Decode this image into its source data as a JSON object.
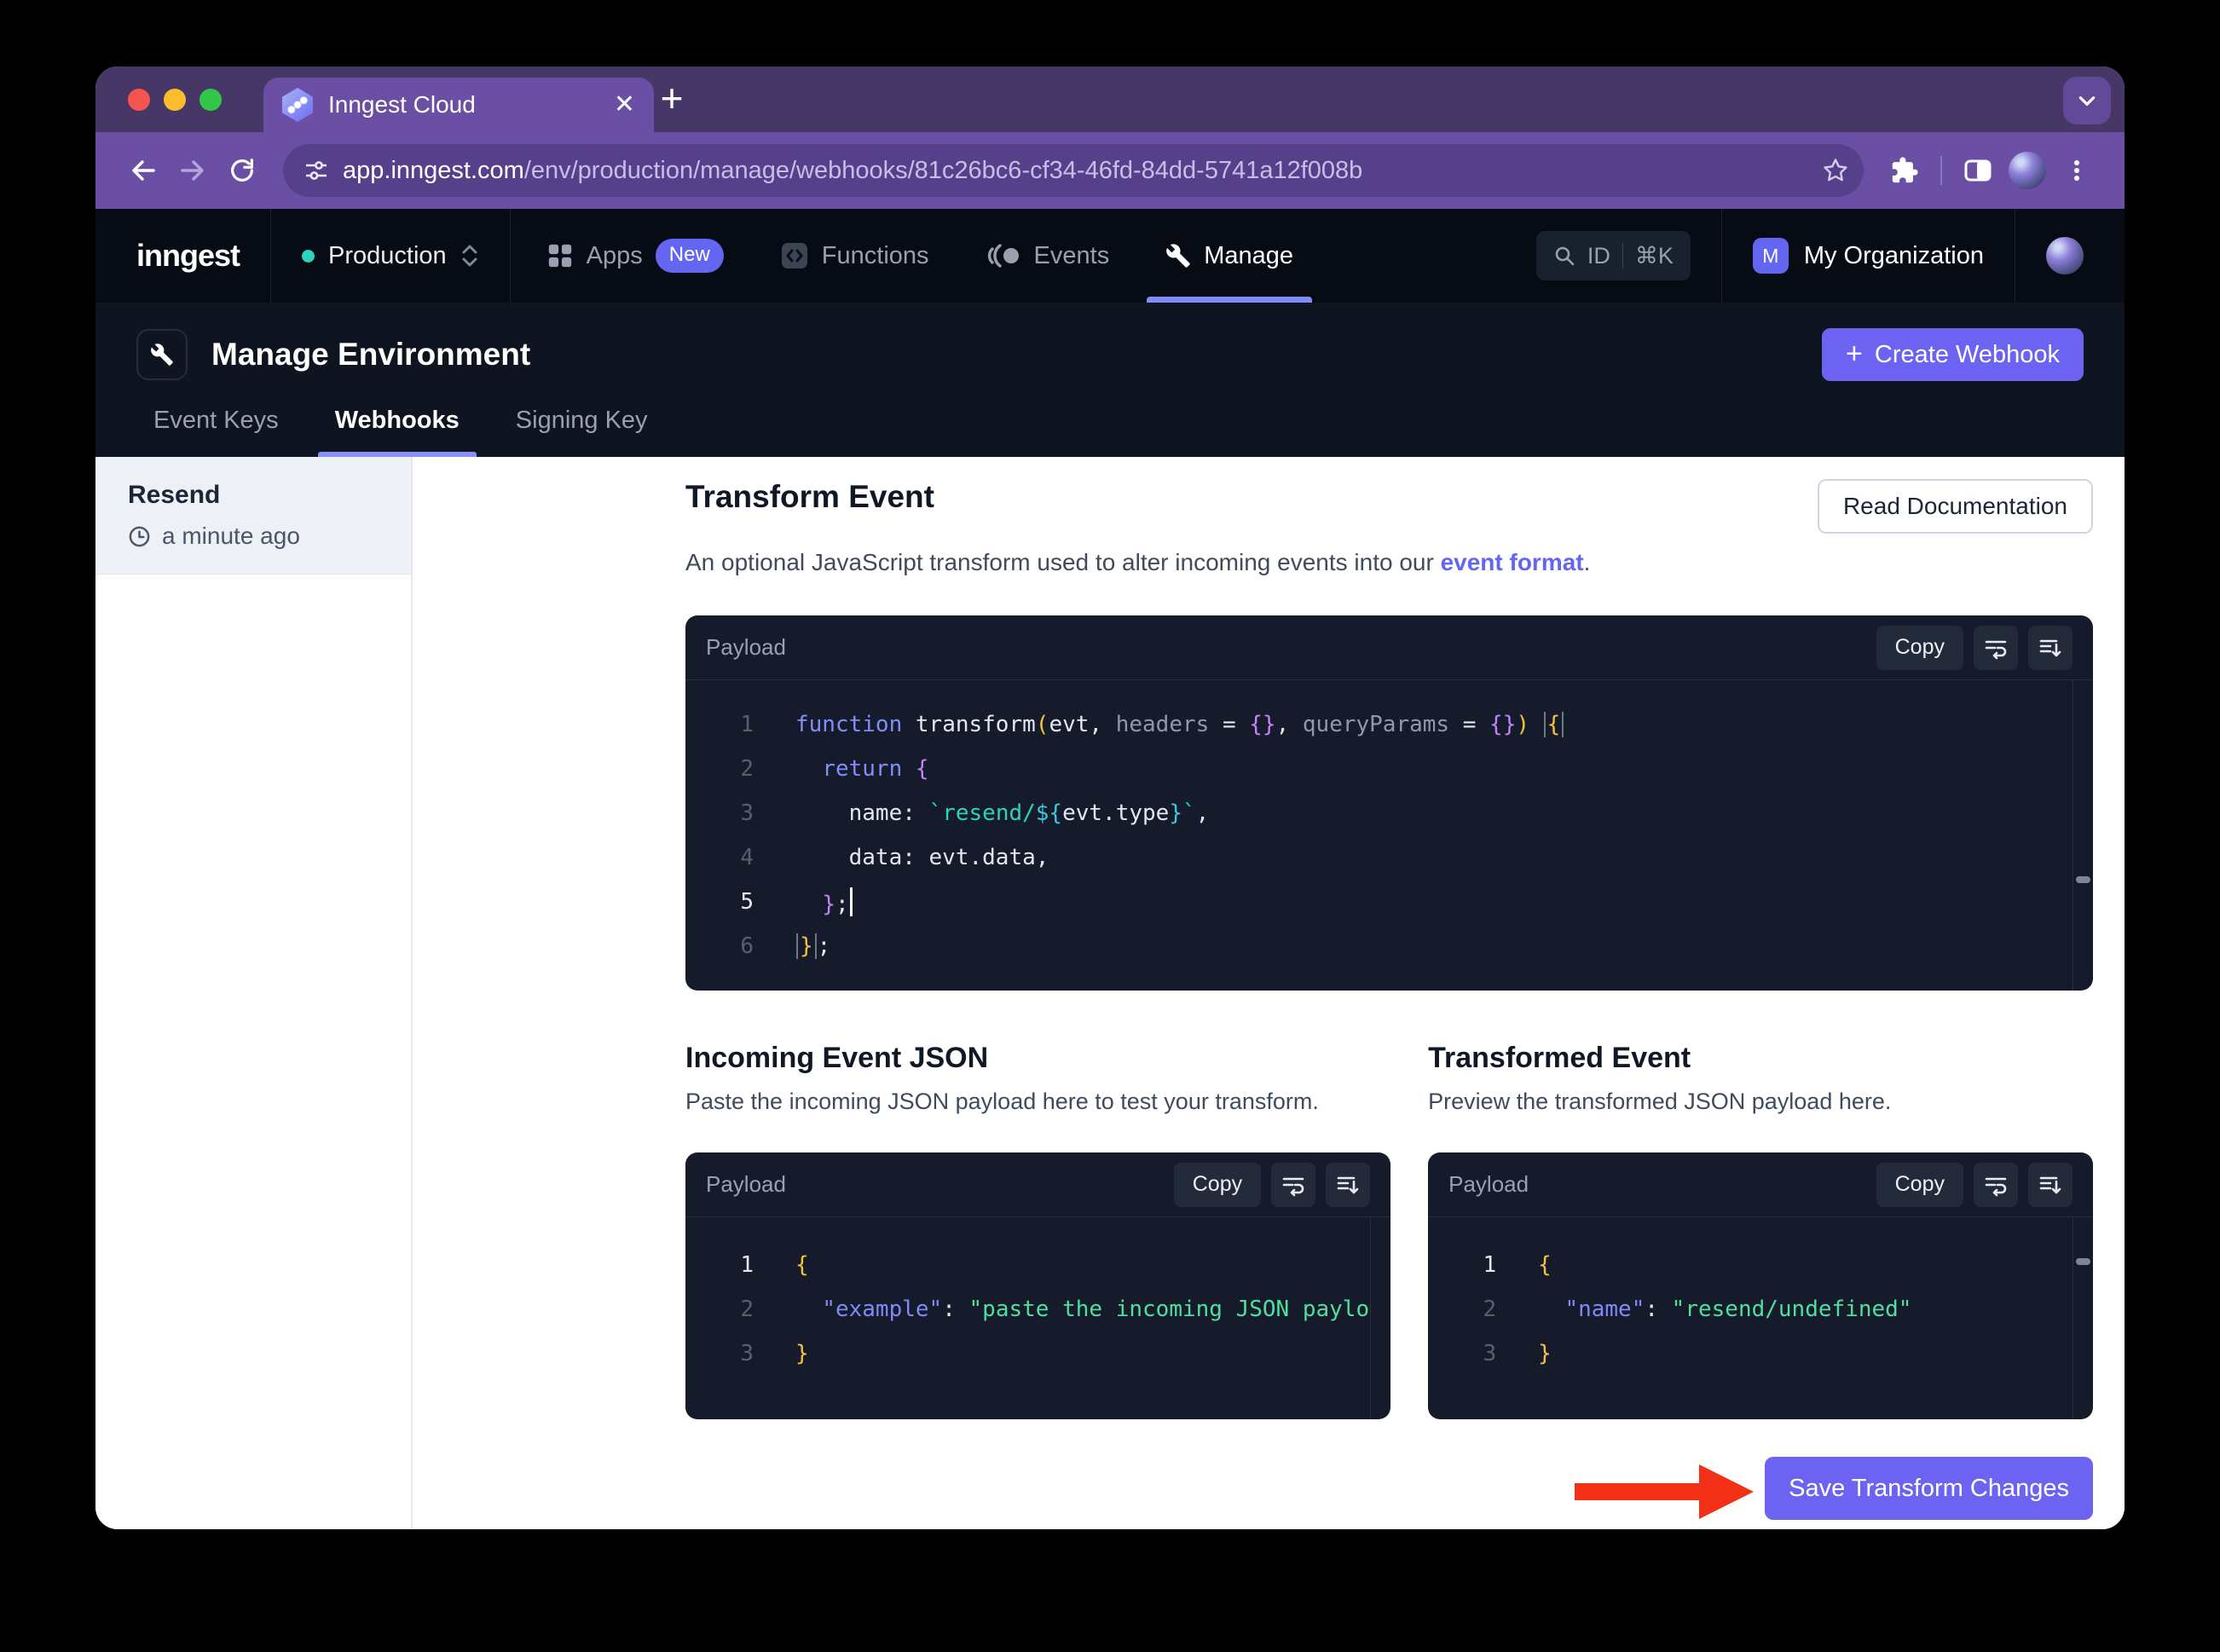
{
  "browser": {
    "tab_title": "Inngest Cloud",
    "url_host": "app.inngest.com",
    "url_path": "/env/production/manage/webhooks/81c26bc6-cf34-46fd-84dd-5741a12f008b"
  },
  "nav": {
    "logo": "inngest",
    "environment": "Production",
    "items": [
      {
        "label": "Apps",
        "badge": "New",
        "active": false
      },
      {
        "label": "Functions",
        "active": false
      },
      {
        "label": "Events",
        "active": false
      },
      {
        "label": "Manage",
        "active": true
      }
    ],
    "search": {
      "id_label": "ID",
      "shortcut": "⌘K"
    },
    "org": {
      "initial": "M",
      "name": "My Organization"
    }
  },
  "header": {
    "title": "Manage Environment",
    "create_button": "Create Webhook",
    "tabs": [
      {
        "label": "Event Keys",
        "active": false
      },
      {
        "label": "Webhooks",
        "active": true
      },
      {
        "label": "Signing Key",
        "active": false
      }
    ]
  },
  "sidebar": {
    "items": [
      {
        "name": "Resend",
        "time": "a minute ago"
      }
    ]
  },
  "transform": {
    "title": "Transform Event",
    "description_prefix": "An optional JavaScript transform used to alter incoming events into our ",
    "description_link": "event format",
    "description_suffix": ".",
    "read_docs_button": "Read Documentation"
  },
  "editor": {
    "panel_label": "Payload",
    "copy_label": "Copy",
    "active_line": 5,
    "lines": [
      [
        [
          "k",
          "function"
        ],
        [
          "w",
          " transform"
        ],
        [
          "y",
          "("
        ],
        [
          "w",
          "evt, "
        ],
        [
          "g",
          "headers"
        ],
        [
          "w",
          " = "
        ],
        [
          "p",
          "{}"
        ],
        [
          "w",
          ", "
        ],
        [
          "g",
          "queryParams"
        ],
        [
          "w",
          " = "
        ],
        [
          "p",
          "{}"
        ],
        [
          "y",
          ")"
        ],
        [
          "w",
          " "
        ],
        [
          "yb",
          "{"
        ]
      ],
      [
        [
          "w",
          "  "
        ],
        [
          "k",
          "return"
        ],
        [
          "w",
          " "
        ],
        [
          "p",
          "{"
        ]
      ],
      [
        [
          "w",
          "    name: "
        ],
        [
          "t",
          "`resend/"
        ],
        [
          "c",
          "${"
        ],
        [
          "w",
          "evt.type"
        ],
        [
          "c",
          "}"
        ],
        [
          "t",
          "`"
        ],
        [
          "w",
          ","
        ]
      ],
      [
        [
          "w",
          "    data: evt.data,"
        ]
      ],
      [
        [
          "w",
          "  "
        ],
        [
          "p",
          "}"
        ],
        [
          "w",
          ";"
        ],
        [
          "cur",
          ""
        ]
      ],
      [
        [
          "yb",
          "}"
        ],
        [
          "w",
          ";"
        ]
      ]
    ]
  },
  "incoming": {
    "title": "Incoming Event JSON",
    "description": "Paste the incoming JSON payload here to test your transform.",
    "panel_label": "Payload",
    "copy_label": "Copy",
    "active_line": 1,
    "lines": [
      [
        [
          "y",
          "{"
        ]
      ],
      [
        [
          "w",
          "  "
        ],
        [
          "ks",
          "\"example\""
        ],
        [
          "w",
          ": "
        ],
        [
          "gs",
          "\"paste the incoming JSON paylo"
        ]
      ],
      [
        [
          "y",
          "}"
        ]
      ]
    ]
  },
  "transformed": {
    "title": "Transformed Event",
    "description": "Preview the transformed JSON payload here.",
    "panel_label": "Payload",
    "copy_label": "Copy",
    "active_line": 1,
    "lines": [
      [
        [
          "y",
          "{"
        ]
      ],
      [
        [
          "w",
          "  "
        ],
        [
          "ks",
          "\"name\""
        ],
        [
          "w",
          ": "
        ],
        [
          "gs",
          "\"resend/undefined\""
        ]
      ],
      [
        [
          "y",
          "}"
        ]
      ]
    ]
  },
  "footer": {
    "save_button": "Save Transform Changes"
  },
  "colors": {
    "accent": "#6c63f2",
    "tab_underline": "#8890f8",
    "env_dot": "#2dd3bf",
    "new_badge": "#6466f1",
    "link": "#6366f1",
    "arrow": "#f23018",
    "string_green": "#4fdf9f",
    "string_teal": "#2ed3b7",
    "keyword_indigo": "#838df8"
  }
}
